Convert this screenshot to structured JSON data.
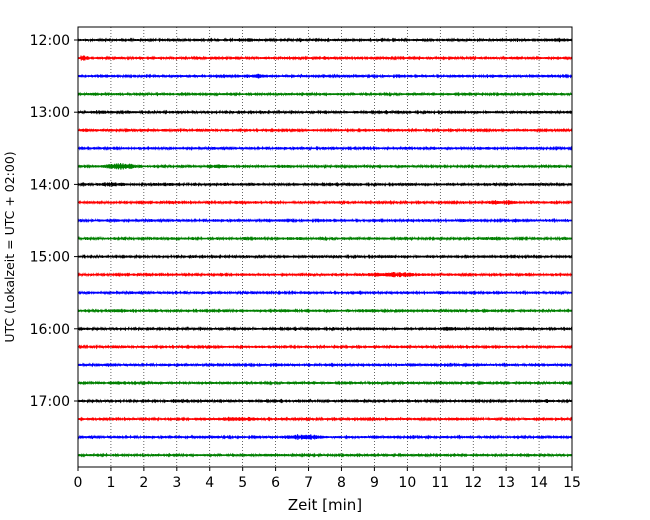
{
  "chart_data": {
    "type": "line",
    "title": "",
    "xlabel": "Zeit  [min]",
    "ylabel": "UTC (Lokalzeit = UTC + 02:00)",
    "xlim": [
      0,
      15
    ],
    "x_ticks": [
      "0",
      "1",
      "2",
      "3",
      "4",
      "5",
      "6",
      "7",
      "8",
      "9",
      "10",
      "11",
      "12",
      "13",
      "14",
      "15"
    ],
    "y_ticks": [
      "12:00",
      "13:00",
      "14:00",
      "15:00",
      "16:00",
      "17:00"
    ],
    "row_interval_min": 15,
    "first_row": "12:00",
    "grid": "vertical dotted lines at each minute",
    "legend": "none",
    "color_cycle": [
      "#000000",
      "#ff0000",
      "#0000ff",
      "#008000"
    ],
    "series": [
      {
        "start": "12:00",
        "color": "#000000",
        "events": [
          [
            5.1,
            1.2,
            2.2
          ],
          [
            8.5,
            0.8,
            1.3
          ],
          [
            14.6,
            0.8,
            2.5
          ]
        ]
      },
      {
        "start": "12:15",
        "color": "#ff0000",
        "events": [
          [
            0.15,
            0.3,
            3.2
          ],
          [
            14.2,
            0.5,
            1.7
          ]
        ]
      },
      {
        "start": "12:30",
        "color": "#0000ff",
        "events": [
          [
            5.4,
            1.5,
            2.6
          ],
          [
            11.6,
            1.0,
            1.8
          ],
          [
            14.4,
            0.8,
            1.8
          ]
        ]
      },
      {
        "start": "12:45",
        "color": "#008000",
        "events": [
          [
            0.4,
            0.7,
            2.0
          ],
          [
            2.8,
            0.8,
            1.4
          ],
          [
            14.5,
            0.8,
            1.6
          ]
        ]
      },
      {
        "start": "13:00",
        "color": "#000000",
        "events": [
          [
            0.6,
            1.2,
            2.1
          ],
          [
            3.0,
            0.7,
            1.7
          ],
          [
            14.0,
            1.0,
            1.7
          ]
        ]
      },
      {
        "start": "13:15",
        "color": "#ff0000",
        "events": [
          [
            0.2,
            0.35,
            3.0
          ],
          [
            2.3,
            1.0,
            1.3
          ],
          [
            9.3,
            0.6,
            1.2
          ]
        ]
      },
      {
        "start": "13:30",
        "color": "#0000ff",
        "events": [
          [
            7.5,
            0.8,
            1.7
          ],
          [
            8.9,
            0.6,
            1.2
          ]
        ]
      },
      {
        "start": "13:45",
        "color": "#008000",
        "events": [
          [
            1.3,
            1.2,
            4.0
          ],
          [
            4.2,
            1.0,
            2.6
          ],
          [
            6.2,
            1.0,
            2.1
          ],
          [
            14.6,
            0.6,
            2.1
          ]
        ]
      },
      {
        "start": "14:00",
        "color": "#000000",
        "events": [
          [
            1.0,
            1.2,
            2.6
          ],
          [
            2.6,
            1.2,
            2.3
          ],
          [
            4.6,
            1.4,
            1.7
          ],
          [
            13.8,
            0.8,
            1.6
          ]
        ]
      },
      {
        "start": "14:15",
        "color": "#ff0000",
        "events": [
          [
            4.6,
            0.8,
            1.3
          ],
          [
            12.9,
            1.4,
            2.9
          ],
          [
            14.3,
            0.6,
            1.4
          ]
        ]
      },
      {
        "start": "14:30",
        "color": "#0000ff",
        "events": [
          [
            1.1,
            0.3,
            2.4
          ],
          [
            6.0,
            0.8,
            1.2
          ]
        ]
      },
      {
        "start": "14:45",
        "color": "#008000",
        "events": [
          [
            5.2,
            0.8,
            2.5
          ],
          [
            6.6,
            1.2,
            1.9
          ],
          [
            12.6,
            0.9,
            2.5
          ],
          [
            14.0,
            0.5,
            1.5
          ]
        ]
      },
      {
        "start": "15:00",
        "color": "#000000",
        "events": [
          [
            5.1,
            0.8,
            1.6
          ],
          [
            7.0,
            0.8,
            1.4
          ],
          [
            12.2,
            1.0,
            1.4
          ]
        ]
      },
      {
        "start": "15:15",
        "color": "#ff0000",
        "events": [
          [
            9.6,
            2.4,
            3.2
          ],
          [
            12.3,
            0.5,
            1.3
          ]
        ]
      },
      {
        "start": "15:30",
        "color": "#0000ff",
        "events": [
          [
            6.8,
            1.0,
            1.4
          ],
          [
            12.2,
            0.6,
            1.3
          ]
        ]
      },
      {
        "start": "15:45",
        "color": "#008000",
        "events": [
          [
            1.2,
            1.2,
            2.2
          ],
          [
            6.2,
            1.0,
            2.0
          ],
          [
            8.8,
            1.4,
            2.3
          ],
          [
            10.4,
            0.8,
            1.6
          ]
        ]
      },
      {
        "start": "16:00",
        "color": "#000000",
        "events": [
          [
            11.3,
            1.0,
            2.4
          ],
          [
            13.5,
            0.8,
            2.2
          ]
        ]
      },
      {
        "start": "16:15",
        "color": "#ff0000",
        "events": [
          [
            5.6,
            1.2,
            1.6
          ],
          [
            9.8,
            1.8,
            1.6
          ]
        ]
      },
      {
        "start": "16:30",
        "color": "#0000ff",
        "events": [
          [
            6.8,
            0.6,
            1.5
          ],
          [
            14.4,
            0.6,
            1.6
          ]
        ]
      },
      {
        "start": "16:45",
        "color": "#008000",
        "events": [
          [
            1.2,
            1.0,
            2.4
          ],
          [
            3.8,
            0.8,
            1.4
          ],
          [
            8.9,
            0.8,
            1.4
          ]
        ]
      },
      {
        "start": "17:00",
        "color": "#000000",
        "events": [
          [
            3.0,
            0.7,
            2.4
          ],
          [
            6.9,
            1.0,
            1.5
          ],
          [
            14.2,
            0.6,
            2.2
          ]
        ]
      },
      {
        "start": "17:15",
        "color": "#ff0000",
        "events": [
          [
            4.8,
            2.2,
            2.6
          ],
          [
            11.5,
            0.8,
            2.1
          ],
          [
            14.3,
            0.4,
            1.6
          ]
        ]
      },
      {
        "start": "17:30",
        "color": "#0000ff",
        "events": [
          [
            3.2,
            0.4,
            1.7
          ],
          [
            6.8,
            1.8,
            3.3
          ],
          [
            11.0,
            0.6,
            1.4
          ]
        ]
      },
      {
        "start": "17:45",
        "color": "#008000",
        "events": [
          [
            5.8,
            1.6,
            1.6
          ],
          [
            8.7,
            0.8,
            1.3
          ],
          [
            10.0,
            0.6,
            1.4
          ]
        ]
      }
    ]
  }
}
